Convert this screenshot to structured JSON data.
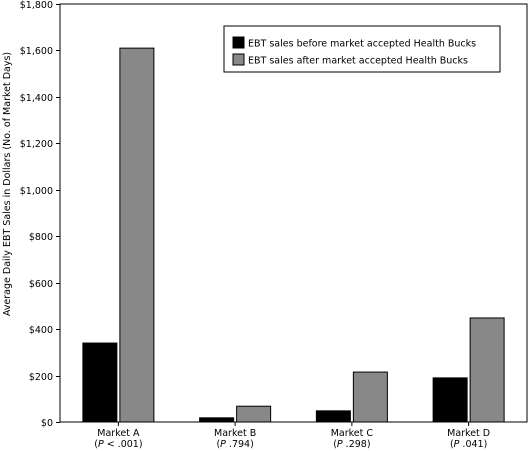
{
  "chart_data": {
    "type": "bar",
    "title": "",
    "xlabel": "",
    "ylabel": "Average Daily EBT Sales in Dollars (No. of Market Days)",
    "ylim": [
      0,
      1800
    ],
    "yticks": [
      0,
      200,
      400,
      600,
      800,
      1000,
      1200,
      1400,
      1600,
      1800
    ],
    "ytick_labels": [
      "$0",
      "$200",
      "$400",
      "$600",
      "$800",
      "$1,000",
      "$1,200",
      "$1,400",
      "$1,600",
      "$1,800"
    ],
    "categories": [
      {
        "name": "Market A",
        "p_prefix": "P",
        "p_value": " < .001"
      },
      {
        "name": "Market B",
        "p_prefix": "P",
        "p_value": " .794"
      },
      {
        "name": "Market C",
        "p_prefix": "P",
        "p_value": " .298"
      },
      {
        "name": "Market D",
        "p_prefix": "P",
        "p_value": " .041"
      }
    ],
    "series": [
      {
        "name": "EBT sales before market accepted Health Bucks",
        "color": "#000000",
        "values": [
          340,
          18,
          48,
          190
        ]
      },
      {
        "name": "EBT sales after market accepted Health Bucks",
        "color": "#888888",
        "values": [
          1610,
          68,
          215,
          448
        ]
      }
    ],
    "legend_position": "top-right",
    "grid": false
  }
}
